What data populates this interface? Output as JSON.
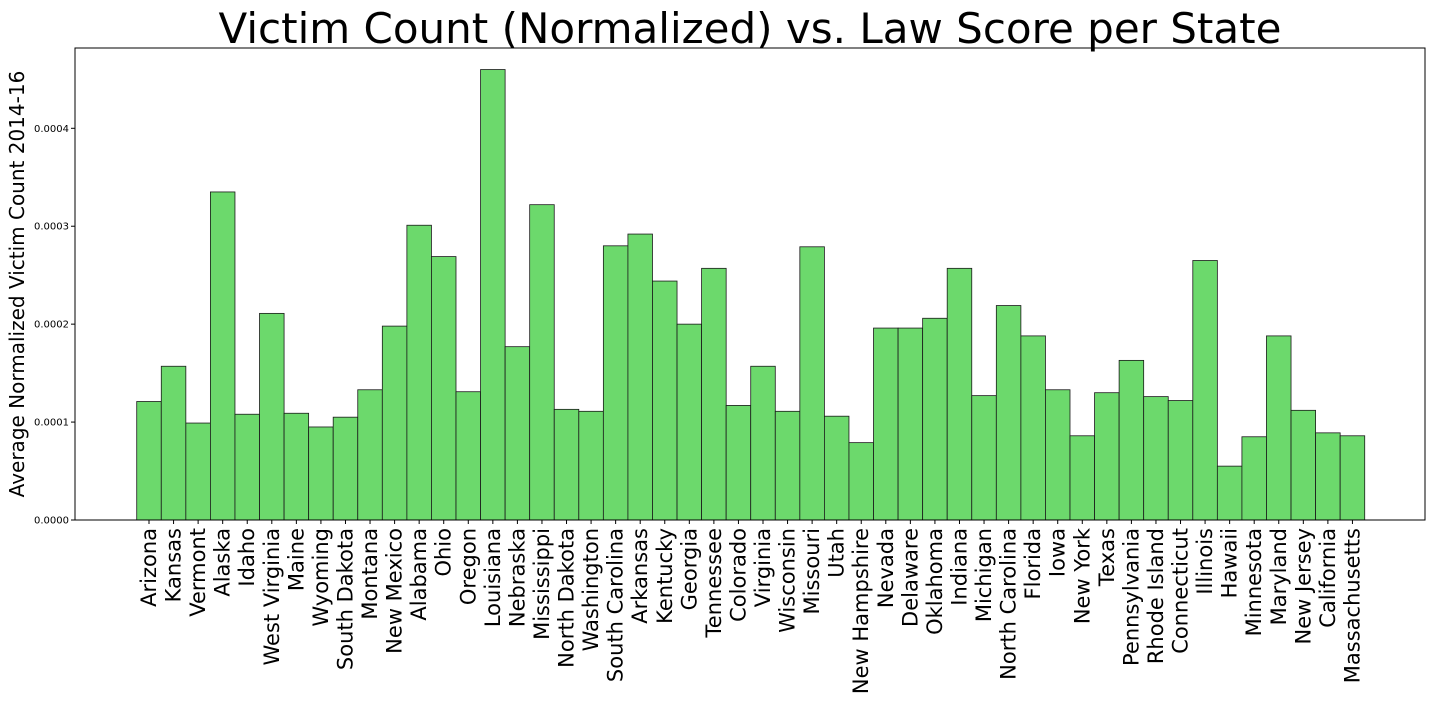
{
  "chart_data": {
    "type": "bar",
    "title": "Victim Count (Normalized) vs. Law Score per State",
    "xlabel": "",
    "ylabel": "Average Normalized Victim Count 2014-16",
    "ylim": [
      0,
      0.000482
    ],
    "yticks": [
      "0.0000",
      "0.0001",
      "0.0002",
      "0.0003",
      "0.0004"
    ],
    "ytick_values": [
      0,
      0.0001,
      0.0002,
      0.0003,
      0.0004
    ],
    "grid": false,
    "bar_color": "#6cd96c",
    "edge_color": "#1a1a1a",
    "categories": [
      "Arizona",
      "Kansas",
      "Vermont",
      "Alaska",
      "Idaho",
      "West Virginia",
      "Maine",
      "Wyoming",
      "South Dakota",
      "Montana",
      "New Mexico",
      "Alabama",
      "Ohio",
      "Oregon",
      "Louisiana",
      "Nebraska",
      "Mississippi",
      "North Dakota",
      "Washington",
      "South Carolina",
      "Arkansas",
      "Kentucky",
      "Georgia",
      "Tennessee",
      "Colorado",
      "Virginia",
      "Wisconsin",
      "Missouri",
      "Utah",
      "New Hampshire",
      "Nevada",
      "Delaware",
      "Oklahoma",
      "Indiana",
      "Michigan",
      "North Carolina",
      "Florida",
      "Iowa",
      "New York",
      "Texas",
      "Pennsylvania",
      "Rhode Island",
      "Connecticut",
      "Illinois",
      "Hawaii",
      "Minnesota",
      "Maryland",
      "New Jersey",
      "California",
      "Massachusetts"
    ],
    "values": [
      0.000121,
      0.000157,
      9.9e-05,
      0.000335,
      0.000108,
      0.000211,
      0.000109,
      9.5e-05,
      0.000105,
      0.000133,
      0.000198,
      0.000301,
      0.000269,
      0.000131,
      0.00046,
      0.000177,
      0.000322,
      0.000113,
      0.000111,
      0.00028,
      0.000292,
      0.000244,
      0.0002,
      0.000257,
      0.000117,
      0.000157,
      0.000111,
      0.000279,
      0.000106,
      7.9e-05,
      0.000196,
      0.000196,
      0.000206,
      0.000257,
      0.000127,
      0.000219,
      0.000188,
      0.000133,
      8.6e-05,
      0.00013,
      0.000163,
      0.000126,
      0.000122,
      0.000265,
      5.5e-05,
      8.5e-05,
      0.000188,
      0.000112,
      8.9e-05,
      8.6e-05
    ]
  }
}
